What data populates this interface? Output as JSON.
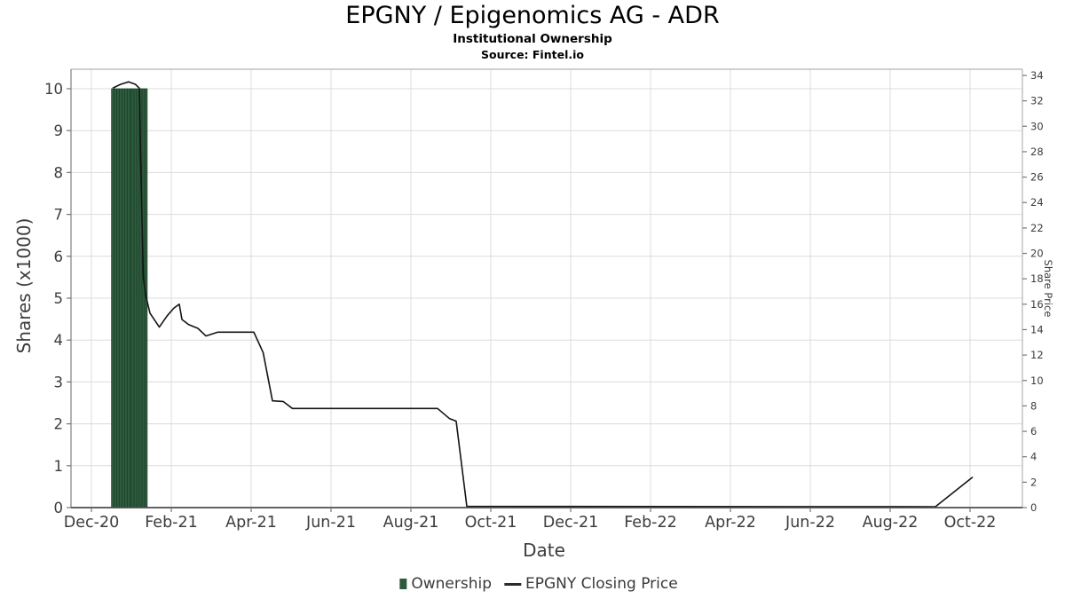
{
  "header": {
    "title": "EPGNY / Epigenomics AG - ADR",
    "subtitle": "Institutional Ownership",
    "source": "Source: Fintel.io"
  },
  "legend": {
    "items": [
      {
        "label": "Ownership",
        "marker": "square",
        "color": "#2d5a3c"
      },
      {
        "label": "EPGNY Closing Price",
        "marker": "line",
        "color": "#2b2b2b"
      }
    ]
  },
  "colors": {
    "bar_fill": "#2e5c3e",
    "bar_stroke": "#1b3f27",
    "line": "#141414",
    "grid": "#dcdcdc",
    "axis_dark": "#4d4d4d",
    "axis_left": "#888888",
    "border_light": "#b3b3b3",
    "tick_mark": "#777777",
    "tick_text": "#3d3d3d"
  },
  "chart_data": {
    "type": "bar+line",
    "title": "EPGNY / Epigenomics AG - ADR",
    "subtitle": "Institutional Ownership",
    "grid": true,
    "legend_position": "bottom-center",
    "x_axis": {
      "label": "Date",
      "tick_labels": [
        "Dec-20",
        "Feb-21",
        "Apr-21",
        "Jun-21",
        "Aug-21",
        "Oct-21",
        "Dec-21",
        "Feb-22",
        "Apr-22",
        "Jun-22",
        "Aug-22",
        "Oct-22"
      ],
      "tick_dates": [
        "2020-12-01",
        "2021-02-01",
        "2021-04-01",
        "2021-06-01",
        "2021-08-01",
        "2021-10-01",
        "2021-12-01",
        "2022-02-01",
        "2022-04-01",
        "2022-06-01",
        "2022-08-01",
        "2022-10-01"
      ]
    },
    "left_axis": {
      "label": "Shares (x1000)",
      "ticks": [
        0,
        1,
        2,
        3,
        4,
        5,
        6,
        7,
        8,
        9,
        10
      ],
      "range": [
        0,
        10.47
      ]
    },
    "right_axis": {
      "label": "Share Price",
      "ticks": [
        0,
        2,
        4,
        6,
        8,
        10,
        12,
        14,
        16,
        18,
        20,
        22,
        24,
        26,
        28,
        30,
        32,
        34
      ],
      "range": [
        0,
        34.5
      ]
    },
    "series": [
      {
        "name": "Ownership",
        "type": "bar",
        "axis": "left",
        "points": [
          [
            "2020-12-17",
            10
          ],
          [
            "2020-12-19",
            10
          ],
          [
            "2020-12-21",
            10
          ],
          [
            "2020-12-23",
            10
          ],
          [
            "2020-12-25",
            10
          ],
          [
            "2020-12-27",
            10
          ],
          [
            "2020-12-29",
            10
          ],
          [
            "2020-12-31",
            10
          ],
          [
            "2021-01-02",
            10
          ],
          [
            "2021-01-04",
            10
          ],
          [
            "2021-01-06",
            10
          ],
          [
            "2021-01-08",
            10
          ],
          [
            "2021-01-10",
            10
          ],
          [
            "2021-01-12",
            10
          ]
        ]
      },
      {
        "name": "EPGNY Closing Price",
        "type": "line",
        "axis": "right",
        "points": [
          [
            "2020-12-17",
            33.0
          ],
          [
            "2020-12-23",
            33.3
          ],
          [
            "2020-12-29",
            33.5
          ],
          [
            "2021-01-04",
            33.3
          ],
          [
            "2021-01-07",
            33.0
          ],
          [
            "2021-01-08",
            27.4
          ],
          [
            "2021-01-10",
            18.1
          ],
          [
            "2021-01-12",
            16.6
          ],
          [
            "2021-01-15",
            15.3
          ],
          [
            "2021-01-22",
            14.2
          ],
          [
            "2021-01-28",
            15.1
          ],
          [
            "2021-02-03",
            15.7
          ],
          [
            "2021-02-07",
            16.0
          ],
          [
            "2021-02-09",
            14.8
          ],
          [
            "2021-02-14",
            14.4
          ],
          [
            "2021-02-21",
            14.1
          ],
          [
            "2021-02-27",
            13.5
          ],
          [
            "2021-03-06",
            13.8
          ],
          [
            "2021-04-03",
            13.8
          ],
          [
            "2021-04-10",
            12.2
          ],
          [
            "2021-04-17",
            8.4
          ],
          [
            "2021-04-25",
            8.35
          ],
          [
            "2021-05-02",
            7.8
          ],
          [
            "2021-08-21",
            7.8
          ],
          [
            "2021-08-30",
            7.0
          ],
          [
            "2021-09-05",
            6.8
          ],
          [
            "2021-09-13",
            0.1
          ],
          [
            "2022-09-05",
            0.07
          ],
          [
            "2022-10-03",
            2.4
          ]
        ]
      }
    ]
  }
}
